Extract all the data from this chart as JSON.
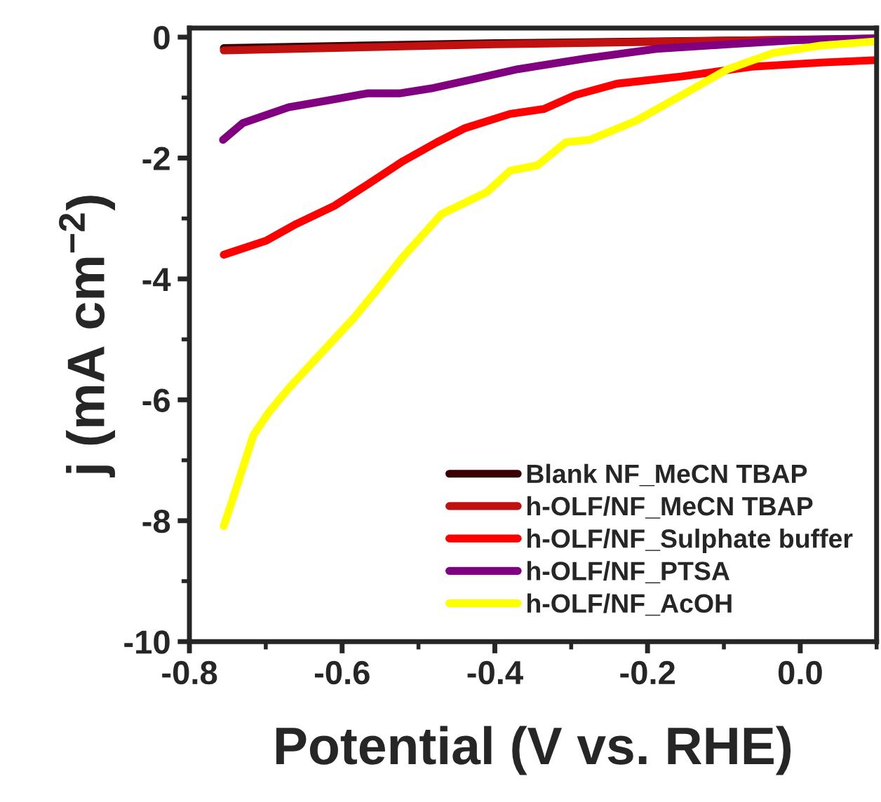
{
  "chart_data": {
    "type": "line",
    "xlabel": "Potential (V vs. RHE)",
    "ylabel": "j (mA cm$^{−2}$)",
    "xlim": [
      -0.8,
      0.1
    ],
    "ylim": [
      -10,
      0.15
    ],
    "xticks": [
      -0.8,
      -0.6,
      -0.4,
      -0.2,
      {
        "value": 0,
        "label": "0.0"
      }
    ],
    "yticks": [
      -10,
      -8,
      -6,
      -4,
      -2,
      0
    ],
    "grid": false,
    "legend": "bottom right",
    "marker": "none",
    "line_style": "solid",
    "series": [
      {
        "name": "Blank NF_MeCN TBAP",
        "color": "#3a0000",
        "x": [
          -0.755,
          -0.4,
          0.1
        ],
        "values": [
          -0.18,
          -0.1,
          -0.03
        ]
      },
      {
        "name": "h-OLF/NF_MeCN TBAP",
        "color": "#c01010",
        "x": [
          -0.755,
          -0.4,
          0.1
        ],
        "values": [
          -0.22,
          -0.12,
          -0.02
        ]
      },
      {
        "name": "h-OLF/NF_Sulphate buffer",
        "color": "#ff0000",
        "x": [
          -0.755,
          -0.7,
          -0.66,
          -0.61,
          -0.567,
          -0.52,
          -0.476,
          -0.44,
          -0.38,
          -0.336,
          -0.295,
          -0.24,
          -0.155,
          -0.064,
          0.027,
          0.1
        ],
        "values": [
          -3.6,
          -3.37,
          -3.09,
          -2.79,
          -2.44,
          -2.05,
          -1.74,
          -1.51,
          -1.27,
          -1.19,
          -0.96,
          -0.77,
          -0.65,
          -0.49,
          -0.42,
          -0.38
        ]
      },
      {
        "name": "h-OLF/NF_PTSA",
        "color": "#800080",
        "x": [
          -0.756,
          -0.73,
          -0.67,
          -0.62,
          -0.567,
          -0.525,
          -0.48,
          -0.43,
          -0.37,
          -0.28,
          -0.185,
          -0.095,
          -0.004,
          0.1
        ],
        "values": [
          -1.7,
          -1.42,
          -1.16,
          -1.05,
          -0.93,
          -0.93,
          -0.84,
          -0.7,
          -0.53,
          -0.35,
          -0.19,
          -0.12,
          -0.05,
          -0.02
        ]
      },
      {
        "name": "h-OLF/NF_AcOH",
        "color": "#ffff00",
        "x": [
          -0.755,
          -0.744,
          -0.716,
          -0.695,
          -0.67,
          -0.64,
          -0.585,
          -0.555,
          -0.52,
          -0.47,
          -0.41,
          -0.38,
          -0.344,
          -0.307,
          -0.276,
          -0.216,
          -0.155,
          -0.095,
          -0.035,
          0.027,
          0.1
        ],
        "values": [
          -8.09,
          -7.67,
          -6.58,
          -6.19,
          -5.81,
          -5.4,
          -4.65,
          -4.19,
          -3.63,
          -2.93,
          -2.56,
          -2.21,
          -2.12,
          -1.74,
          -1.7,
          -1.39,
          -0.96,
          -0.53,
          -0.26,
          -0.14,
          -0.07
        ]
      }
    ]
  }
}
